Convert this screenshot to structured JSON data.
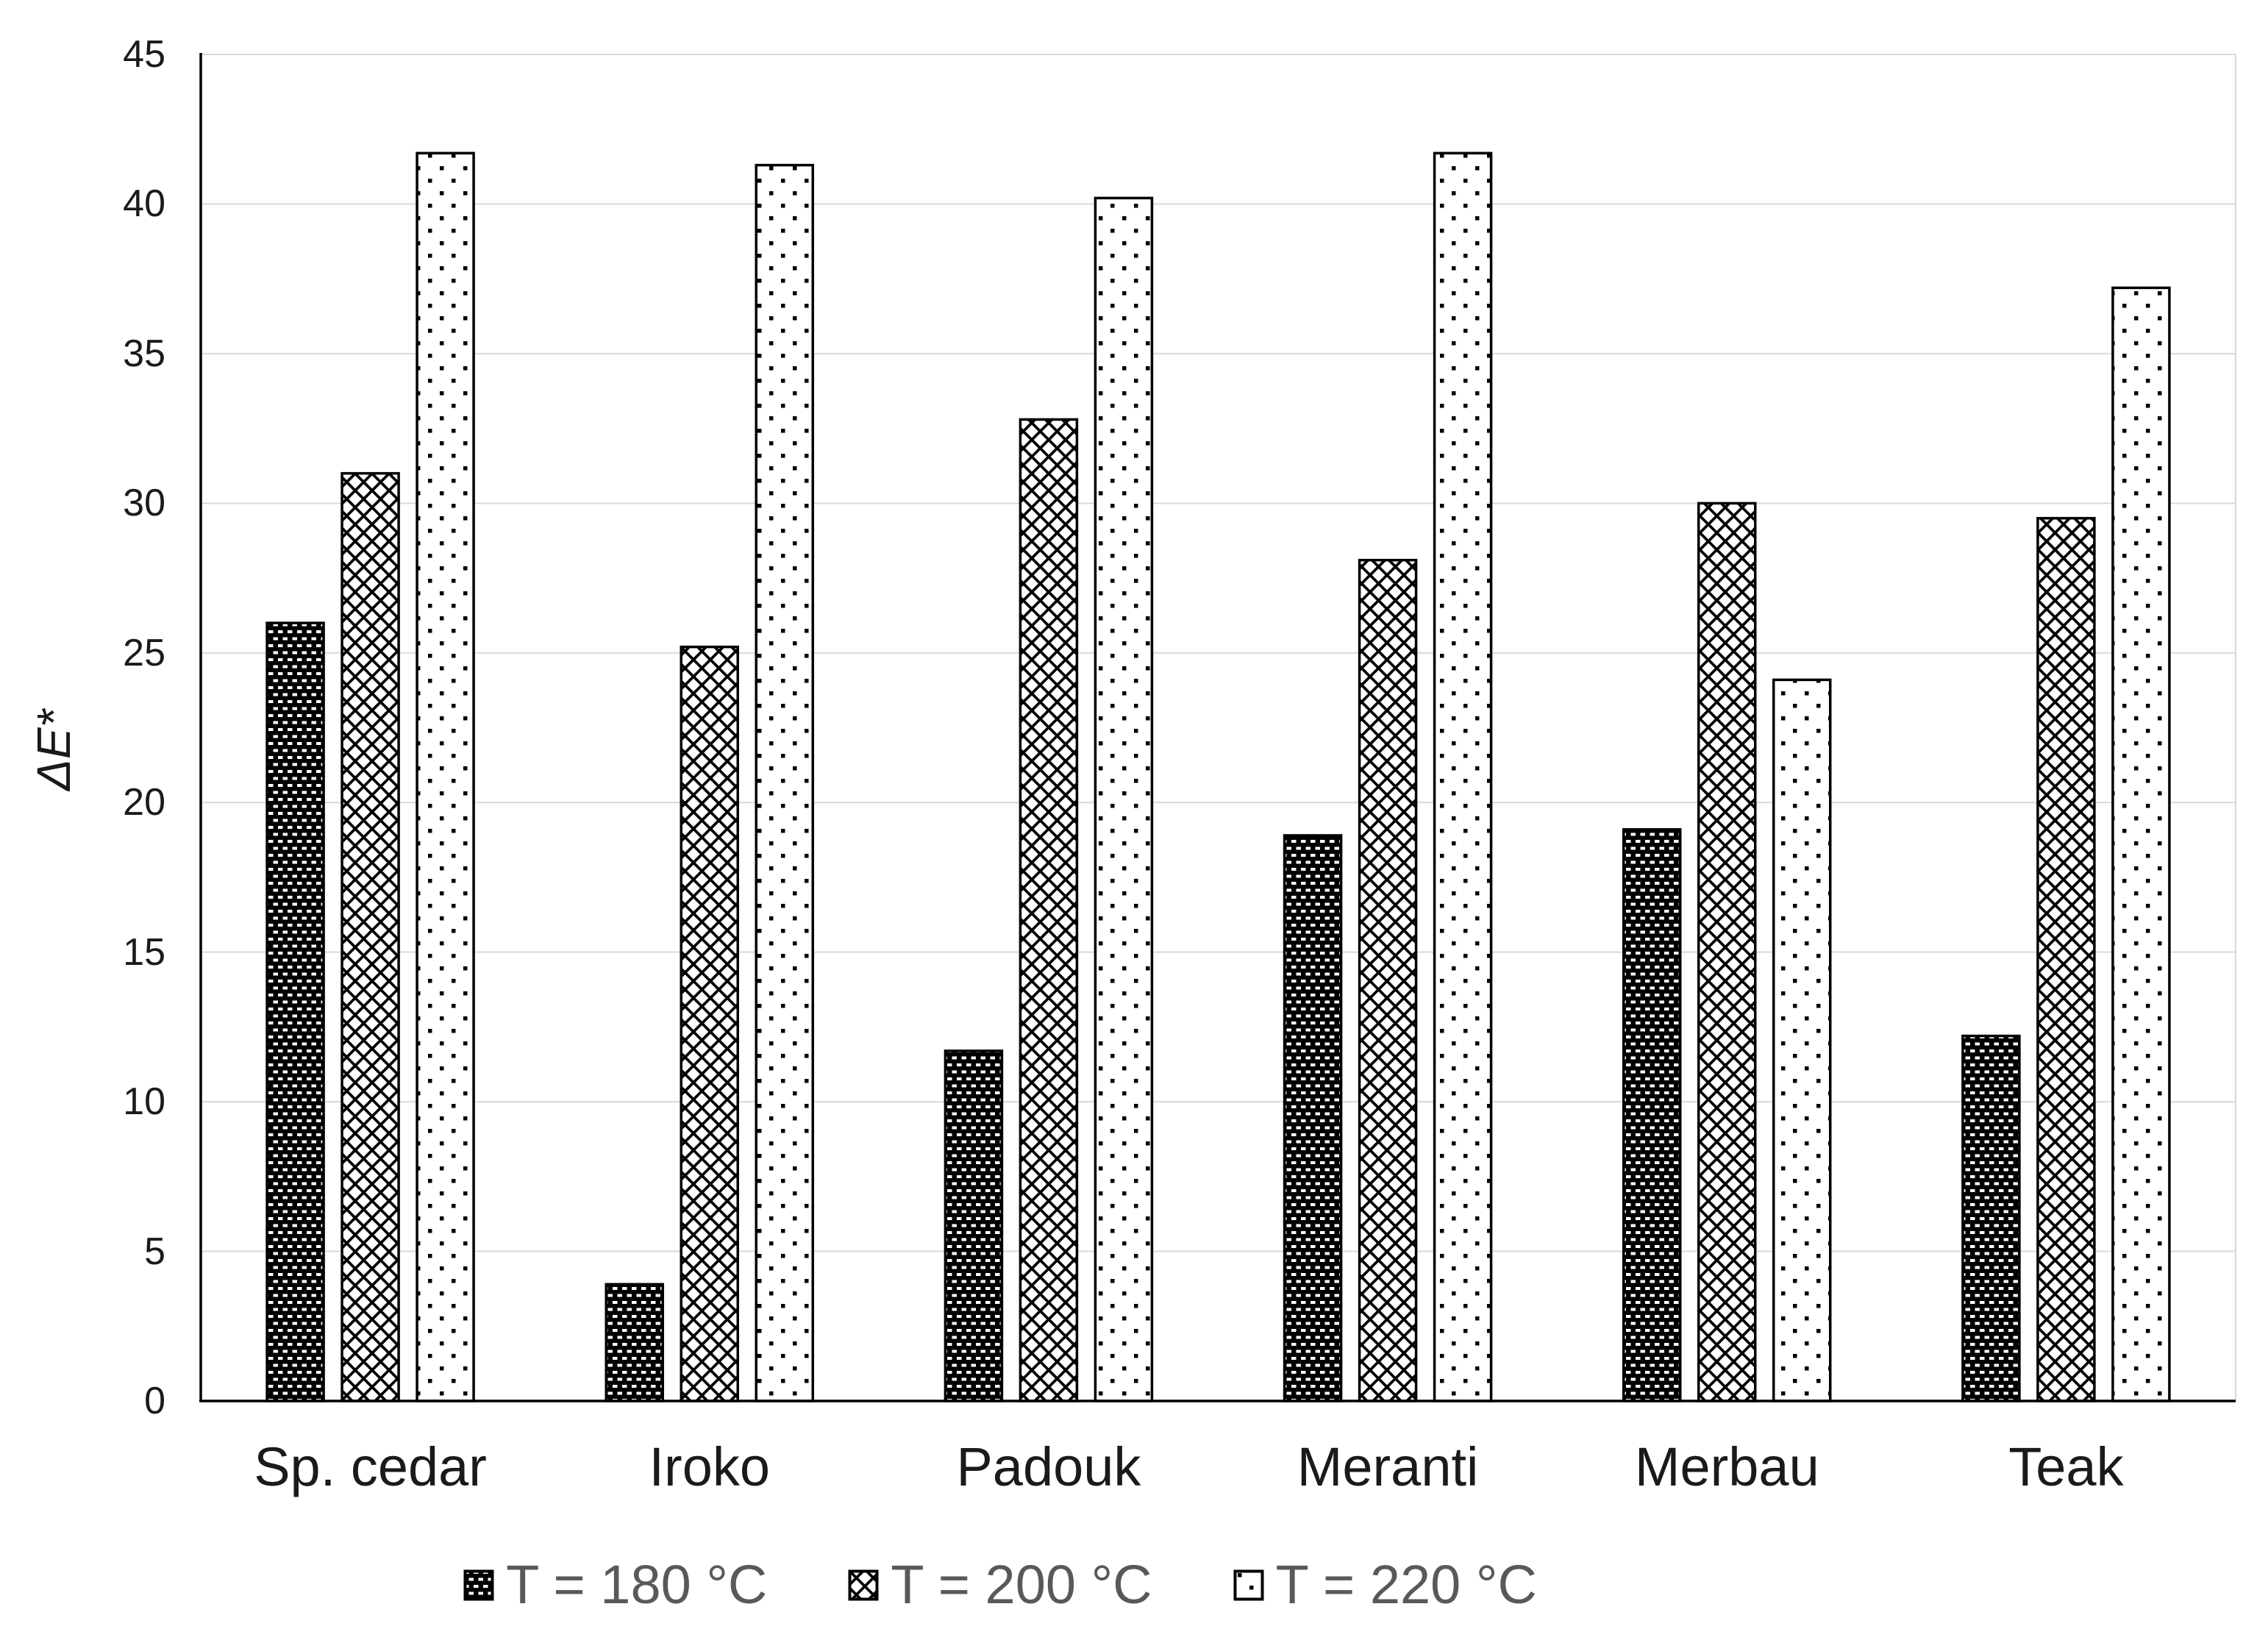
{
  "chart_data": {
    "type": "bar",
    "title": "",
    "xlabel": "",
    "ylabel": "ΔE*",
    "categories": [
      "Sp. cedar",
      "Iroko",
      "Padouk",
      "Meranti",
      "Merbau",
      "Teak"
    ],
    "series": [
      {
        "name": "T = 180 °C",
        "values": [
          26.0,
          3.9,
          11.7,
          18.9,
          19.1,
          12.2
        ]
      },
      {
        "name": "T = 200 °C",
        "values": [
          31.0,
          25.2,
          32.8,
          28.1,
          30.0,
          29.5
        ]
      },
      {
        "name": "T = 220 °C",
        "values": [
          41.7,
          41.3,
          40.2,
          41.7,
          24.1,
          37.2
        ]
      }
    ],
    "yticks": [
      0,
      5,
      10,
      15,
      20,
      25,
      30,
      35,
      40,
      45
    ],
    "ylim": [
      0,
      45
    ],
    "grid": "horizontal",
    "legend_position": "bottom",
    "colors": {
      "bar_outline": "#000000",
      "gridline": "#d9d9d9",
      "axis_line": "#000000",
      "tick_label": "#1a1a1a",
      "category_label": "#1a1a1a",
      "legend_text": "#595959",
      "background": "#ffffff"
    }
  }
}
